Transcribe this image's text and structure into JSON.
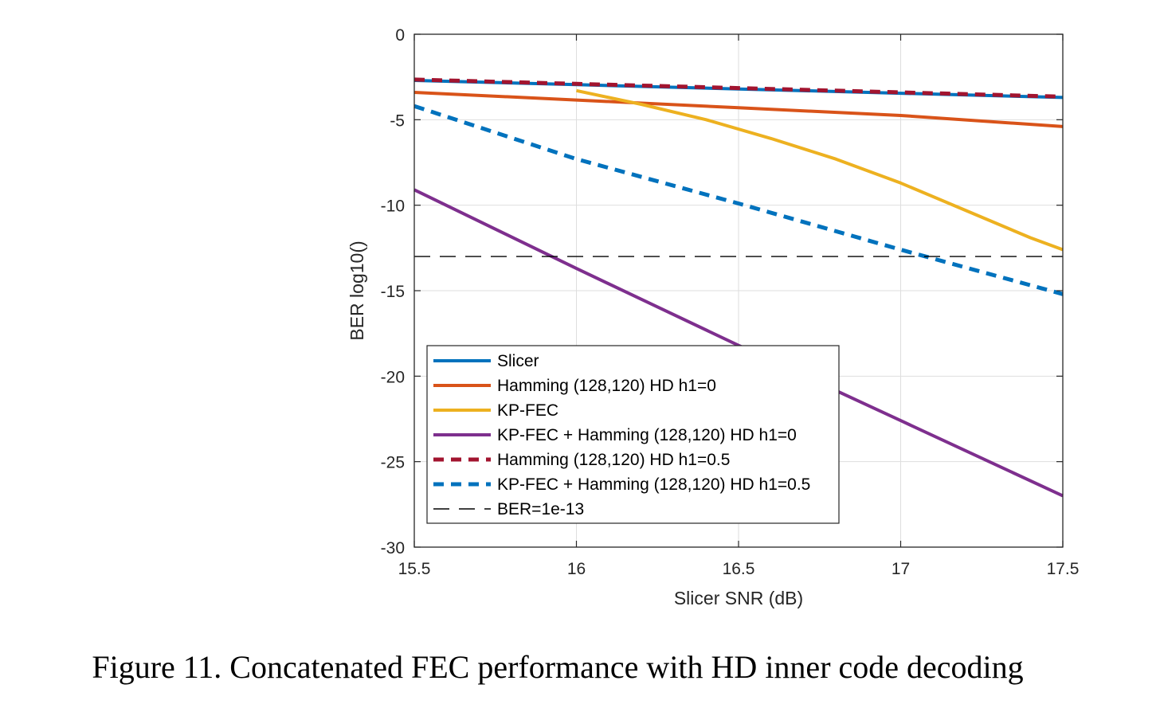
{
  "caption": "Figure 11. Concatenated FEC performance with HD inner code decoding",
  "chart_data": {
    "type": "line",
    "title": "",
    "xlabel": "Slicer SNR (dB)",
    "ylabel": "BER log10()",
    "xlim": [
      15.5,
      17.5
    ],
    "ylim": [
      -30,
      0
    ],
    "xticks": [
      "15.5",
      "16",
      "16.5",
      "17",
      "17.5"
    ],
    "yticks": [
      "0",
      "-5",
      "-10",
      "-15",
      "-20",
      "-25",
      "-30"
    ],
    "grid": true,
    "legend_position": "bottom-center",
    "series": [
      {
        "name": "Slicer",
        "color": "#0072BD",
        "dash": "solid",
        "x": [
          15.5,
          16.0,
          16.5,
          17.0,
          17.5
        ],
        "y": [
          -2.7,
          -2.95,
          -3.2,
          -3.45,
          -3.7
        ]
      },
      {
        "name": "Hamming (128,120) HD h1=0",
        "color": "#D95319",
        "dash": "solid",
        "x": [
          15.5,
          16.0,
          16.5,
          17.0,
          17.5
        ],
        "y": [
          -3.4,
          -3.85,
          -4.3,
          -4.75,
          -5.4
        ]
      },
      {
        "name": "KP-FEC",
        "color": "#EDB120",
        "dash": "solid",
        "x": [
          16.0,
          16.2,
          16.4,
          16.6,
          16.8,
          17.0,
          17.2,
          17.4,
          17.5
        ],
        "y": [
          -3.3,
          -4.1,
          -5.0,
          -6.1,
          -7.3,
          -8.7,
          -10.3,
          -11.9,
          -12.6
        ]
      },
      {
        "name": "KP-FEC + Hamming (128,120) HD h1=0",
        "color": "#7E2F8E",
        "dash": "solid",
        "x": [
          15.5,
          16.0,
          16.5,
          17.0,
          17.5
        ],
        "y": [
          -9.1,
          -13.7,
          -18.2,
          -22.6,
          -27.0
        ]
      },
      {
        "name": "Hamming (128,120) HD h1=0.5",
        "color": "#A2142F",
        "dash": "dashed",
        "x": [
          15.5,
          16.0,
          16.5,
          17.0,
          17.5
        ],
        "y": [
          -2.65,
          -2.9,
          -3.15,
          -3.4,
          -3.65
        ]
      },
      {
        "name": "KP-FEC + Hamming (128,120) HD h1=0.5",
        "color": "#0072BD",
        "dash": "dashed",
        "x": [
          15.5,
          16.0,
          16.5,
          17.0,
          17.5
        ],
        "y": [
          -4.2,
          -7.3,
          -9.9,
          -12.6,
          -15.2
        ]
      },
      {
        "name": "BER=1e-13",
        "color": "#000000",
        "dash": "thin-dashed",
        "x": [
          15.5,
          17.5
        ],
        "y": [
          -13,
          -13
        ]
      }
    ]
  }
}
